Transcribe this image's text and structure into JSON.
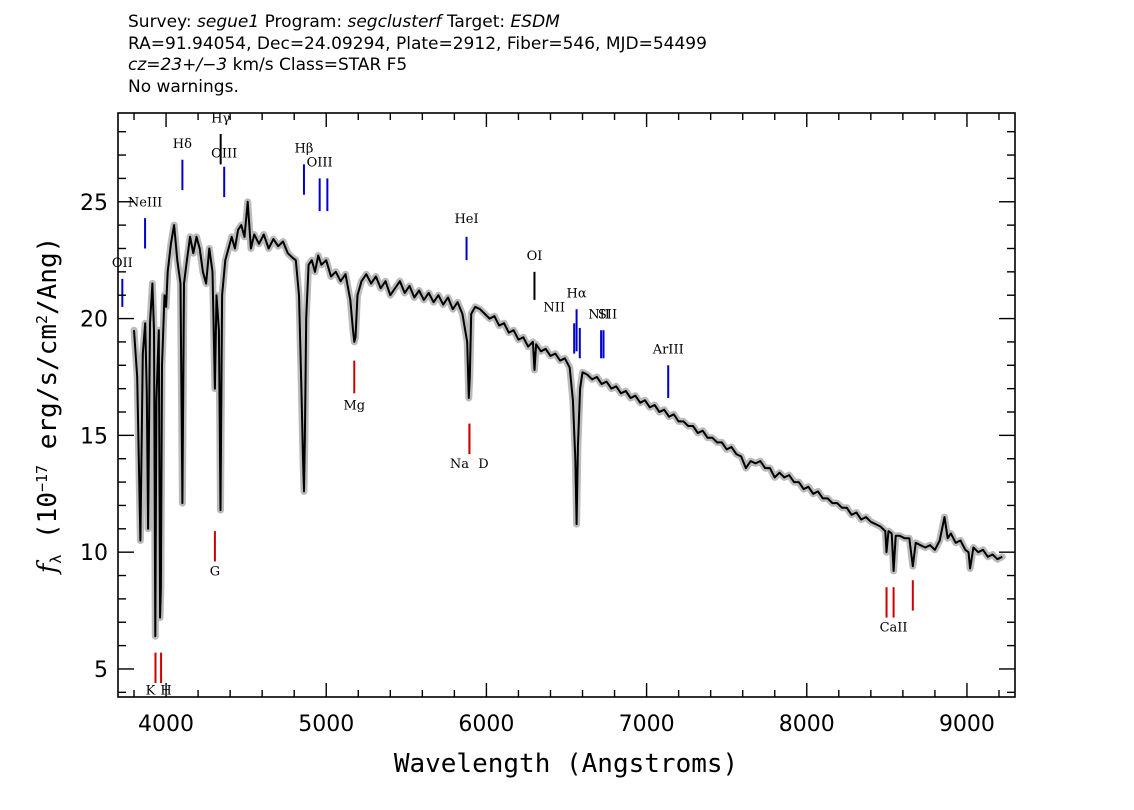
{
  "header": {
    "survey_label": "Survey:",
    "survey": "segue1",
    "program_label": "Program:",
    "program": "segclusterf",
    "target_label": "Target:",
    "target": "ESDM",
    "line2": "RA=91.94054, Dec=24.09294, Plate=2912, Fiber=546, MJD=54499",
    "cz": "cz=23+/−3",
    "cz_units": "km/s Class=STAR F5",
    "warnings": "No warnings."
  },
  "chart_data": {
    "type": "line",
    "xlabel": "Wavelength (Angstroms)",
    "ylabel_parts": [
      "f",
      "λ",
      " (10",
      "−17",
      " erg/s/cm",
      "2",
      "/Ang)"
    ],
    "xlim": [
      3700,
      9300
    ],
    "ylim": [
      3.8,
      28.8
    ],
    "x_ticks": [
      4000,
      5000,
      6000,
      7000,
      8000,
      9000
    ],
    "y_ticks": [
      5,
      10,
      15,
      20,
      25
    ],
    "grid": false,
    "series": [
      {
        "color": "#000000",
        "error_color": "#bbbbbb",
        "points": [
          [
            3800,
            19.5
          ],
          [
            3820,
            17.5
          ],
          [
            3840,
            10.5
          ],
          [
            3855,
            18.5
          ],
          [
            3870,
            19.8
          ],
          [
            3880,
            16.8
          ],
          [
            3888,
            11.0
          ],
          [
            3900,
            19.8
          ],
          [
            3915,
            21.5
          ],
          [
            3925,
            19.5
          ],
          [
            3933,
            6.4
          ],
          [
            3940,
            16.5
          ],
          [
            3955,
            19.5
          ],
          [
            3963,
            7.2
          ],
          [
            3968,
            8.5
          ],
          [
            3975,
            18.0
          ],
          [
            3990,
            21.0
          ],
          [
            4000,
            20.5
          ],
          [
            4010,
            22.0
          ],
          [
            4030,
            23.2
          ],
          [
            4050,
            24.0
          ],
          [
            4070,
            22.5
          ],
          [
            4090,
            21.5
          ],
          [
            4102,
            12.1
          ],
          [
            4112,
            21.5
          ],
          [
            4130,
            22.5
          ],
          [
            4150,
            23.5
          ],
          [
            4170,
            22.8
          ],
          [
            4190,
            23.5
          ],
          [
            4210,
            23.0
          ],
          [
            4230,
            22.0
          ],
          [
            4250,
            21.5
          ],
          [
            4270,
            23.0
          ],
          [
            4290,
            22.0
          ],
          [
            4305,
            17.0
          ],
          [
            4315,
            21.0
          ],
          [
            4330,
            19.5
          ],
          [
            4340,
            11.8
          ],
          [
            4350,
            21.0
          ],
          [
            4370,
            22.5
          ],
          [
            4390,
            23.0
          ],
          [
            4410,
            23.5
          ],
          [
            4430,
            23.0
          ],
          [
            4450,
            23.8
          ],
          [
            4470,
            24.0
          ],
          [
            4490,
            23.5
          ],
          [
            4510,
            25.0
          ],
          [
            4530,
            23.0
          ],
          [
            4550,
            23.6
          ],
          [
            4580,
            23.2
          ],
          [
            4610,
            23.6
          ],
          [
            4640,
            23.0
          ],
          [
            4670,
            23.4
          ],
          [
            4700,
            23.1
          ],
          [
            4730,
            23.3
          ],
          [
            4760,
            22.8
          ],
          [
            4790,
            22.6
          ],
          [
            4810,
            22.5
          ],
          [
            4830,
            21.0
          ],
          [
            4845,
            17.0
          ],
          [
            4855,
            14.0
          ],
          [
            4861,
            12.6
          ],
          [
            4867,
            15.0
          ],
          [
            4875,
            20.0
          ],
          [
            4890,
            22.3
          ],
          [
            4910,
            22.5
          ],
          [
            4930,
            22.0
          ],
          [
            4950,
            22.7
          ],
          [
            4970,
            22.3
          ],
          [
            5000,
            22.5
          ],
          [
            5030,
            21.8
          ],
          [
            5060,
            22.0
          ],
          [
            5090,
            21.6
          ],
          [
            5120,
            21.9
          ],
          [
            5150,
            20.8
          ],
          [
            5167,
            19.5
          ],
          [
            5175,
            19.0
          ],
          [
            5183,
            19.2
          ],
          [
            5195,
            21.0
          ],
          [
            5220,
            21.6
          ],
          [
            5250,
            21.9
          ],
          [
            5280,
            21.5
          ],
          [
            5310,
            21.8
          ],
          [
            5340,
            21.3
          ],
          [
            5370,
            21.6
          ],
          [
            5400,
            21.0
          ],
          [
            5430,
            21.3
          ],
          [
            5460,
            21.6
          ],
          [
            5490,
            21.1
          ],
          [
            5520,
            21.4
          ],
          [
            5550,
            20.9
          ],
          [
            5580,
            21.2
          ],
          [
            5610,
            20.8
          ],
          [
            5640,
            21.1
          ],
          [
            5670,
            20.7
          ],
          [
            5700,
            21.0
          ],
          [
            5730,
            20.6
          ],
          [
            5760,
            20.9
          ],
          [
            5790,
            20.4
          ],
          [
            5820,
            20.7
          ],
          [
            5850,
            20.2
          ],
          [
            5880,
            19.0
          ],
          [
            5890,
            16.6
          ],
          [
            5896,
            17.5
          ],
          [
            5905,
            20.2
          ],
          [
            5930,
            20.5
          ],
          [
            5960,
            20.4
          ],
          [
            5990,
            20.2
          ],
          [
            6020,
            20.0
          ],
          [
            6050,
            20.1
          ],
          [
            6080,
            19.7
          ],
          [
            6110,
            19.8
          ],
          [
            6140,
            19.4
          ],
          [
            6170,
            19.5
          ],
          [
            6200,
            19.1
          ],
          [
            6230,
            19.2
          ],
          [
            6260,
            18.8
          ],
          [
            6290,
            19.0
          ],
          [
            6300,
            17.8
          ],
          [
            6310,
            18.9
          ],
          [
            6340,
            18.6
          ],
          [
            6370,
            18.7
          ],
          [
            6400,
            18.4
          ],
          [
            6430,
            18.5
          ],
          [
            6460,
            18.2
          ],
          [
            6490,
            18.3
          ],
          [
            6520,
            17.9
          ],
          [
            6540,
            16.5
          ],
          [
            6555,
            14.0
          ],
          [
            6563,
            11.2
          ],
          [
            6571,
            14.5
          ],
          [
            6585,
            17.0
          ],
          [
            6600,
            17.7
          ],
          [
            6630,
            17.6
          ],
          [
            6660,
            17.4
          ],
          [
            6690,
            17.5
          ],
          [
            6720,
            17.2
          ],
          [
            6750,
            17.3
          ],
          [
            6780,
            17.0
          ],
          [
            6810,
            17.1
          ],
          [
            6840,
            16.8
          ],
          [
            6870,
            16.9
          ],
          [
            6900,
            16.6
          ],
          [
            6930,
            16.7
          ],
          [
            6960,
            16.4
          ],
          [
            6990,
            16.5
          ],
          [
            7020,
            16.2
          ],
          [
            7050,
            16.3
          ],
          [
            7080,
            16.0
          ],
          [
            7110,
            16.1
          ],
          [
            7140,
            15.8
          ],
          [
            7170,
            15.9
          ],
          [
            7200,
            15.6
          ],
          [
            7230,
            15.6
          ],
          [
            7260,
            15.4
          ],
          [
            7290,
            15.4
          ],
          [
            7320,
            15.1
          ],
          [
            7350,
            15.2
          ],
          [
            7380,
            14.9
          ],
          [
            7410,
            14.9
          ],
          [
            7440,
            14.7
          ],
          [
            7470,
            14.7
          ],
          [
            7500,
            14.4
          ],
          [
            7530,
            14.5
          ],
          [
            7560,
            14.2
          ],
          [
            7590,
            14.1
          ],
          [
            7620,
            13.6
          ],
          [
            7650,
            13.9
          ],
          [
            7680,
            13.8
          ],
          [
            7710,
            13.9
          ],
          [
            7740,
            13.6
          ],
          [
            7770,
            13.6
          ],
          [
            7800,
            13.2
          ],
          [
            7830,
            13.4
          ],
          [
            7860,
            13.2
          ],
          [
            7890,
            13.3
          ],
          [
            7920,
            13.0
          ],
          [
            7950,
            13.0
          ],
          [
            7980,
            12.7
          ],
          [
            8010,
            12.8
          ],
          [
            8040,
            12.5
          ],
          [
            8070,
            12.6
          ],
          [
            8100,
            12.3
          ],
          [
            8130,
            12.3
          ],
          [
            8160,
            12.1
          ],
          [
            8190,
            12.1
          ],
          [
            8220,
            11.9
          ],
          [
            8250,
            11.9
          ],
          [
            8280,
            11.6
          ],
          [
            8310,
            11.7
          ],
          [
            8340,
            11.4
          ],
          [
            8370,
            11.5
          ],
          [
            8400,
            11.3
          ],
          [
            8430,
            11.2
          ],
          [
            8460,
            11.1
          ],
          [
            8490,
            10.9
          ],
          [
            8498,
            10.0
          ],
          [
            8510,
            10.9
          ],
          [
            8530,
            10.8
          ],
          [
            8542,
            9.2
          ],
          [
            8555,
            10.7
          ],
          [
            8580,
            10.7
          ],
          [
            8610,
            10.6
          ],
          [
            8640,
            10.6
          ],
          [
            8662,
            9.4
          ],
          [
            8680,
            10.4
          ],
          [
            8710,
            10.3
          ],
          [
            8740,
            10.2
          ],
          [
            8770,
            10.3
          ],
          [
            8800,
            10.1
          ],
          [
            8830,
            10.5
          ],
          [
            8860,
            11.5
          ],
          [
            8880,
            10.6
          ],
          [
            8900,
            10.8
          ],
          [
            8930,
            10.4
          ],
          [
            8960,
            10.5
          ],
          [
            8990,
            10.1
          ],
          [
            9010,
            10.0
          ],
          [
            9020,
            9.3
          ],
          [
            9040,
            10.2
          ],
          [
            9070,
            10.0
          ],
          [
            9100,
            10.1
          ],
          [
            9130,
            9.8
          ],
          [
            9160,
            9.9
          ],
          [
            9190,
            9.7
          ],
          [
            9220,
            9.8
          ]
        ]
      }
    ],
    "emission_lines": [
      {
        "label": "OII",
        "x": 3727,
        "y_top": 21.7,
        "y_bottom": 20.5,
        "label_y": 22.2,
        "color": "#0000cc"
      },
      {
        "label": "NeIII",
        "x": 3869,
        "y_top": 24.3,
        "y_bottom": 23.0,
        "label_y": 24.8,
        "color": "#0000cc"
      },
      {
        "label": "Hδ",
        "x": 4102,
        "y_top": 26.8,
        "y_bottom": 25.5,
        "label_y": 27.3,
        "color": "#0000cc"
      },
      {
        "label": "Hγ",
        "x": 4341,
        "y_top": 27.9,
        "y_bottom": 26.6,
        "label_y": 28.4,
        "color": "#000000"
      },
      {
        "label": "OIII",
        "x": 4363,
        "y_top": 26.5,
        "y_bottom": 25.2,
        "label_y": 26.9,
        "color": "#0000cc"
      },
      {
        "label": "Hβ",
        "x": 4861,
        "y_top": 26.6,
        "y_bottom": 25.3,
        "label_y": 27.1,
        "color": "#0000cc"
      },
      {
        "label": "OIII",
        "x": 4959,
        "y_top": 26.0,
        "y_bottom": 24.6,
        "label_y": 26.5,
        "color": "#0000cc"
      },
      {
        "label": "",
        "x": 5007,
        "y_top": 26.0,
        "y_bottom": 24.6,
        "label_y": 26.5,
        "color": "#0000cc"
      },
      {
        "label": "HeI",
        "x": 5876,
        "y_top": 23.5,
        "y_bottom": 22.5,
        "label_y": 24.1,
        "color": "#0000cc"
      },
      {
        "label": "OI",
        "x": 6300,
        "y_top": 22.0,
        "y_bottom": 20.8,
        "label_y": 22.5,
        "color": "#000000"
      },
      {
        "label": "NII",
        "x": 6548,
        "y_top": 19.8,
        "y_bottom": 18.5,
        "label_y": 20.3,
        "color": "#0000cc"
      },
      {
        "label": "Hα",
        "x": 6563,
        "y_top": 20.4,
        "y_bottom": 18.6,
        "label_y": 20.9,
        "color": "#0000cc"
      },
      {
        "label": "",
        "x": 6583,
        "y_top": 19.6,
        "y_bottom": 18.3,
        "label_y": 20.1,
        "color": "#0000cc"
      },
      {
        "label": "NII",
        "x": 6716,
        "y_top": 19.5,
        "y_bottom": 18.3,
        "label_y": 20.0,
        "color": "#0000cc"
      },
      {
        "label": "SII",
        "x": 6731,
        "y_top": 19.5,
        "y_bottom": 18.3,
        "label_y": 20.0,
        "color": "#0000cc"
      },
      {
        "label": "ArIII",
        "x": 7135,
        "y_top": 18.0,
        "y_bottom": 16.6,
        "label_y": 18.5,
        "color": "#0000cc"
      }
    ],
    "absorption_lines": [
      {
        "label": "K",
        "x": 3934,
        "y_top": 5.7,
        "y_bottom": 4.4,
        "label_y": 3.9,
        "color": "#cc0000"
      },
      {
        "label": "H",
        "x": 3969,
        "y_top": 5.7,
        "y_bottom": 4.4,
        "label_y": 3.9,
        "color": "#cc0000"
      },
      {
        "label": "G",
        "x": 4305,
        "y_top": 10.9,
        "y_bottom": 9.6,
        "label_y": 9.0,
        "color": "#cc0000"
      },
      {
        "label": "Mg",
        "x": 5175,
        "y_top": 18.2,
        "y_bottom": 16.8,
        "label_y": 16.1,
        "color": "#cc0000"
      },
      {
        "label": "Na",
        "x": 5894,
        "y_top": 15.5,
        "y_bottom": 14.2,
        "label_y": 13.6,
        "color": "#cc0000"
      },
      {
        "label": "D",
        "x": 5894,
        "y_top": 15.5,
        "y_bottom": 14.2,
        "label_y": 13.6,
        "color": "#cc0000"
      },
      {
        "label": "",
        "x": 8498,
        "y_top": 8.5,
        "y_bottom": 7.2,
        "label_y": 6.6,
        "color": "#cc0000"
      },
      {
        "label": "CaII",
        "x": 8542,
        "y_top": 8.5,
        "y_bottom": 7.2,
        "label_y": 6.6,
        "color": "#cc0000"
      },
      {
        "label": "",
        "x": 8662,
        "y_top": 8.8,
        "y_bottom": 7.5,
        "label_y": 6.8,
        "color": "#cc0000"
      }
    ]
  }
}
